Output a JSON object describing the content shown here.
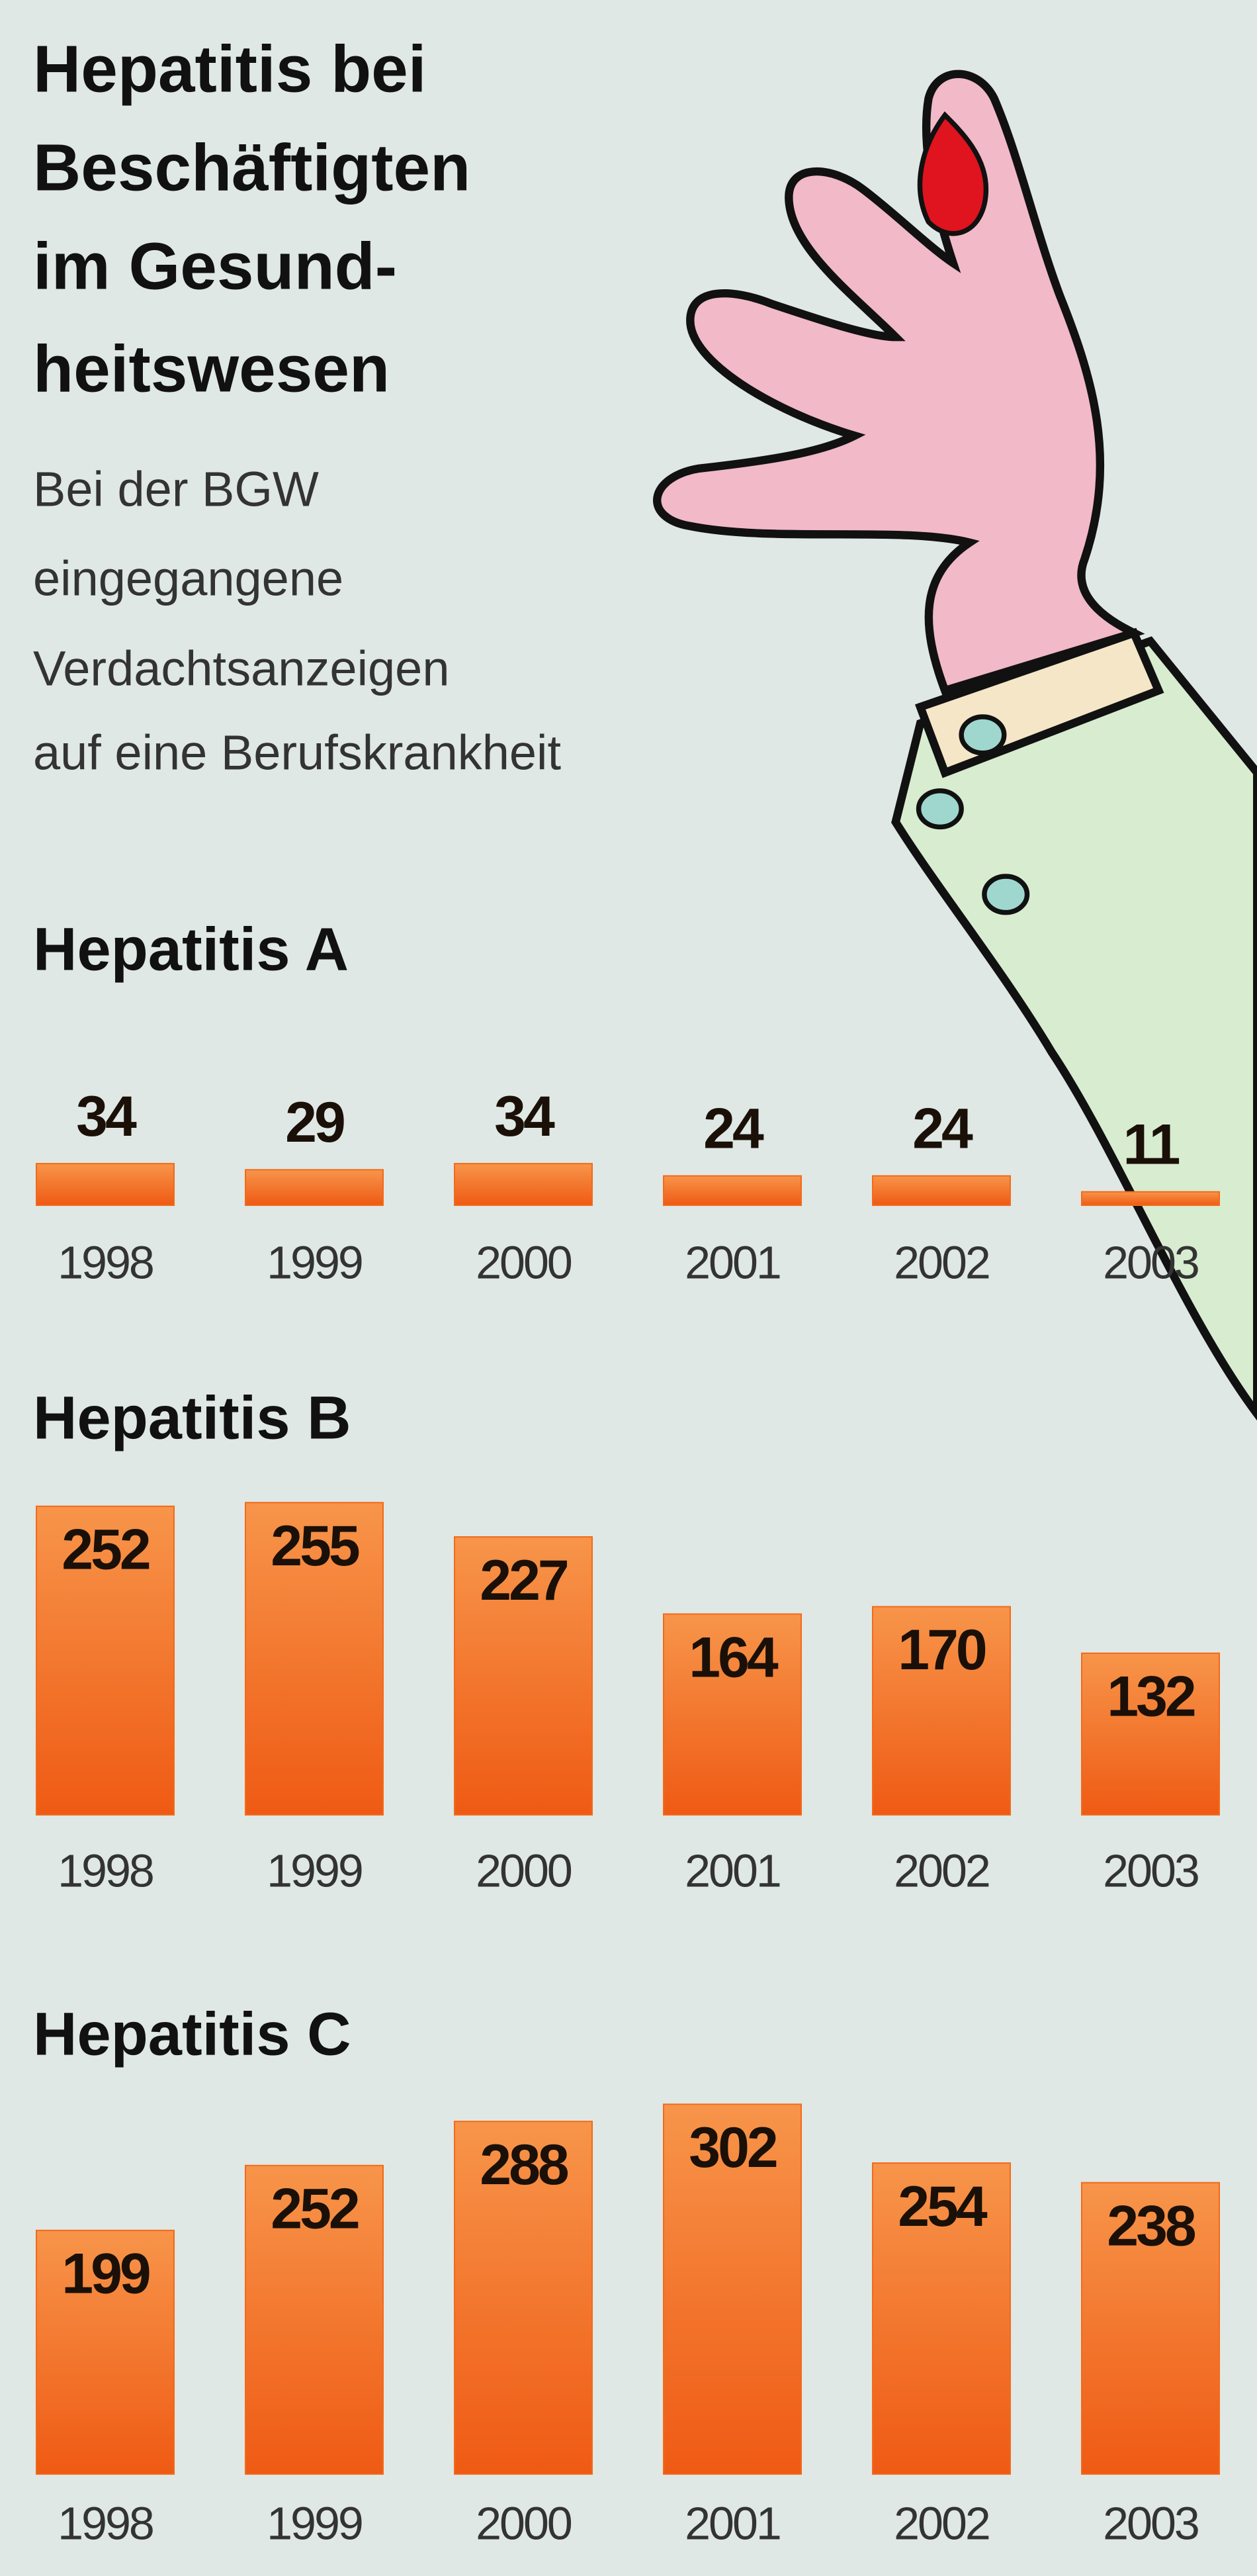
{
  "title": [
    "Hepatitis bei",
    "Beschäftigten",
    "im Gesund-",
    "heitswesen"
  ],
  "subtitle": [
    "Bei der BGW",
    "eingegangene",
    "Verdachtsanzeigen",
    "auf eine Berufskrankheit"
  ],
  "chart_data": [
    {
      "type": "bar",
      "title": "Hepatitis A",
      "categories": [
        "1998",
        "1999",
        "2000",
        "2001",
        "2002",
        "2003"
      ],
      "values": [
        34,
        29,
        34,
        24,
        24,
        11
      ],
      "color": "#f26a1b",
      "value_label_position": "outside"
    },
    {
      "type": "bar",
      "title": "Hepatitis B",
      "categories": [
        "1998",
        "1999",
        "2000",
        "2001",
        "2002",
        "2003"
      ],
      "values": [
        252,
        255,
        227,
        164,
        170,
        132
      ],
      "color": "#f26a1b",
      "value_label_position": "inside"
    },
    {
      "type": "bar",
      "title": "Hepatitis C",
      "categories": [
        "1998",
        "1999",
        "2000",
        "2001",
        "2002",
        "2003"
      ],
      "values": [
        199,
        252,
        288,
        302,
        254,
        238
      ],
      "color": "#f26a1b",
      "value_label_position": "inside"
    }
  ]
}
